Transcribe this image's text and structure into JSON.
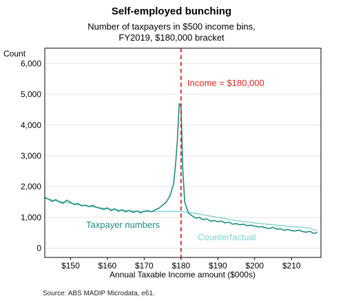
{
  "chart_data": {
    "type": "line",
    "title": "Self-employed bunching",
    "subtitle": [
      "Number of taxpayers in $500 income bins,",
      "FY2019, $180,000 bracket"
    ],
    "ylabel": "Count",
    "xlabel": "Annual Taxable Income amount ($000s)",
    "xlim": [
      143,
      218
    ],
    "ylim": [
      -300,
      6500
    ],
    "x_ticks": [
      150,
      160,
      170,
      180,
      190,
      200,
      210
    ],
    "x_tick_labels": [
      "$150",
      "$160",
      "$170",
      "$180",
      "$190",
      "$200",
      "$210"
    ],
    "y_ticks": [
      0,
      1000,
      2000,
      3000,
      4000,
      5000,
      6000
    ],
    "y_tick_labels": [
      "0",
      "1,000",
      "2,000",
      "3,000",
      "4,000",
      "5,000",
      "6,000"
    ],
    "grid": "horizontal",
    "reference_line": {
      "x": 180,
      "label": "Income = $180,000",
      "color": "#e02020"
    },
    "series": [
      {
        "name": "Taxpayer numbers",
        "color": "#1b8c82",
        "x": [
          143,
          144,
          145,
          146,
          147,
          148,
          149,
          150,
          151,
          152,
          153,
          154,
          155,
          156,
          157,
          158,
          159,
          160,
          161,
          162,
          163,
          164,
          165,
          166,
          167,
          168,
          169,
          170,
          171,
          172,
          173,
          174,
          175,
          176,
          177,
          178,
          178.5,
          179,
          179.5,
          180,
          180.5,
          181,
          182,
          183,
          184,
          185,
          186,
          187,
          188,
          189,
          190,
          191,
          192,
          193,
          194,
          195,
          196,
          197,
          198,
          199,
          200,
          201,
          202,
          203,
          204,
          205,
          206,
          207,
          208,
          209,
          210,
          211,
          212,
          213,
          214,
          215,
          216,
          217
        ],
        "values": [
          1650,
          1600,
          1520,
          1580,
          1500,
          1460,
          1560,
          1490,
          1420,
          1450,
          1380,
          1400,
          1350,
          1390,
          1330,
          1300,
          1260,
          1310,
          1220,
          1280,
          1200,
          1250,
          1180,
          1230,
          1160,
          1210,
          1150,
          1200,
          1220,
          1180,
          1250,
          1300,
          1400,
          1500,
          1700,
          2100,
          2700,
          3500,
          4700,
          4600,
          2500,
          1500,
          1150,
          1050,
          980,
          1000,
          930,
          950,
          880,
          900,
          860,
          880,
          820,
          850,
          780,
          800,
          760,
          780,
          730,
          750,
          720,
          690,
          700,
          660,
          640,
          680,
          620,
          630,
          580,
          610,
          570,
          560,
          590,
          540,
          520,
          550,
          480,
          510
        ]
      },
      {
        "name": "Counterfactual",
        "color": "#7fd3cf",
        "x": [
          143,
          148,
          153,
          158,
          163,
          168,
          173,
          178,
          180,
          183,
          186,
          190,
          195,
          200,
          205,
          210,
          213,
          215,
          217
        ],
        "values": [
          1620,
          1500,
          1400,
          1310,
          1240,
          1200,
          1190,
          1200,
          1190,
          1150,
          1090,
          1000,
          900,
          820,
          760,
          700,
          680,
          650,
          560
        ]
      }
    ],
    "annotations": [
      "Taxpayer numbers",
      "Counterfactual",
      "Income = $180,000"
    ],
    "source": "Source: ABS MADIP Microdata, e61."
  }
}
